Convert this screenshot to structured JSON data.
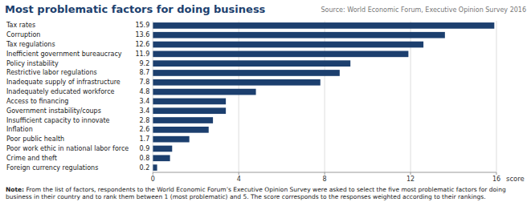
{
  "chart_data": {
    "type": "bar",
    "orientation": "horizontal",
    "title": "Most problematic factors for doing business",
    "annotations": [
      "Source: World Economic Forum, Executive Opinion Survey 2016",
      "Note: From the list of factors, respondents to the World Economic Forum’s Executive Opinion Survey were asked to select the five most problematic factors for doing business in their country and to rank them between 1 (most problematic) and 5. The score corresponds to the responses weighted according to their rankings."
    ],
    "categories": [
      "Tax rates",
      "Corruption",
      "Tax regulations",
      "Inefficient government bureaucracy",
      "Policy instability",
      "Restrictive labor regulations",
      "Inadequate supply of infrastructure",
      "Inadequately educated workforce",
      "Access to financing",
      "Government instability/coups",
      "Insufficient capacity to innovate",
      "Inflation",
      "Poor public health",
      "Poor work ethic in national labor force",
      "Crime and theft",
      "Foreign currency regulations"
    ],
    "values": [
      15.9,
      13.6,
      12.6,
      11.9,
      9.2,
      8.7,
      7.8,
      4.8,
      3.4,
      3.4,
      2.8,
      2.6,
      1.7,
      0.9,
      0.8,
      0.2
    ],
    "color": "#1c3f6e",
    "xlabel": "score",
    "xlim": [
      0,
      16
    ],
    "xticks": [
      0,
      4,
      8,
      12,
      16
    ],
    "grid": true,
    "data_labels": true
  }
}
